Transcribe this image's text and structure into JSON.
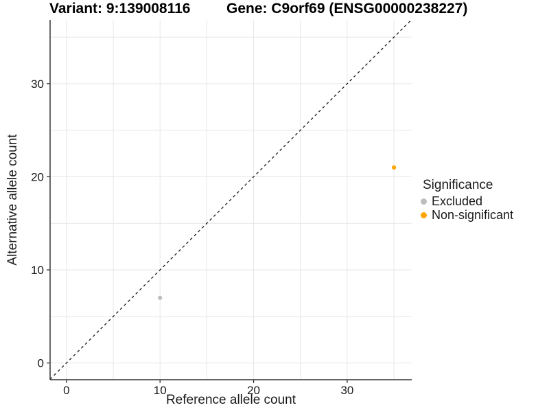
{
  "chart_data": {
    "type": "scatter",
    "titles": {
      "left": "Variant: 9:139008116",
      "right": "Gene: C9orf69 (ENSG00000238227)"
    },
    "xlabel": "Reference allele count",
    "ylabel": "Alternative allele count",
    "xlim": [
      -1.75,
      36.9
    ],
    "ylim": [
      -1.8,
      36.85
    ],
    "x_ticks": [
      0,
      10,
      20,
      30
    ],
    "y_ticks": [
      0,
      10,
      20,
      30
    ],
    "grid": {
      "show": true,
      "interval": 5,
      "color": "#e7e7e7"
    },
    "reference_line": {
      "type": "identity",
      "slope": 1,
      "intercept": 0,
      "style": "dashed",
      "color": "#1a1a1a"
    },
    "legend": {
      "title": "Significance",
      "position": "right"
    },
    "series": [
      {
        "name": "Excluded",
        "color": "#bdbdbd",
        "points": [
          [
            10,
            7
          ]
        ]
      },
      {
        "name": "Non-significant",
        "color": "#ffa500",
        "points": [
          [
            35,
            21
          ]
        ]
      }
    ],
    "axis_line_color": "#333333"
  }
}
